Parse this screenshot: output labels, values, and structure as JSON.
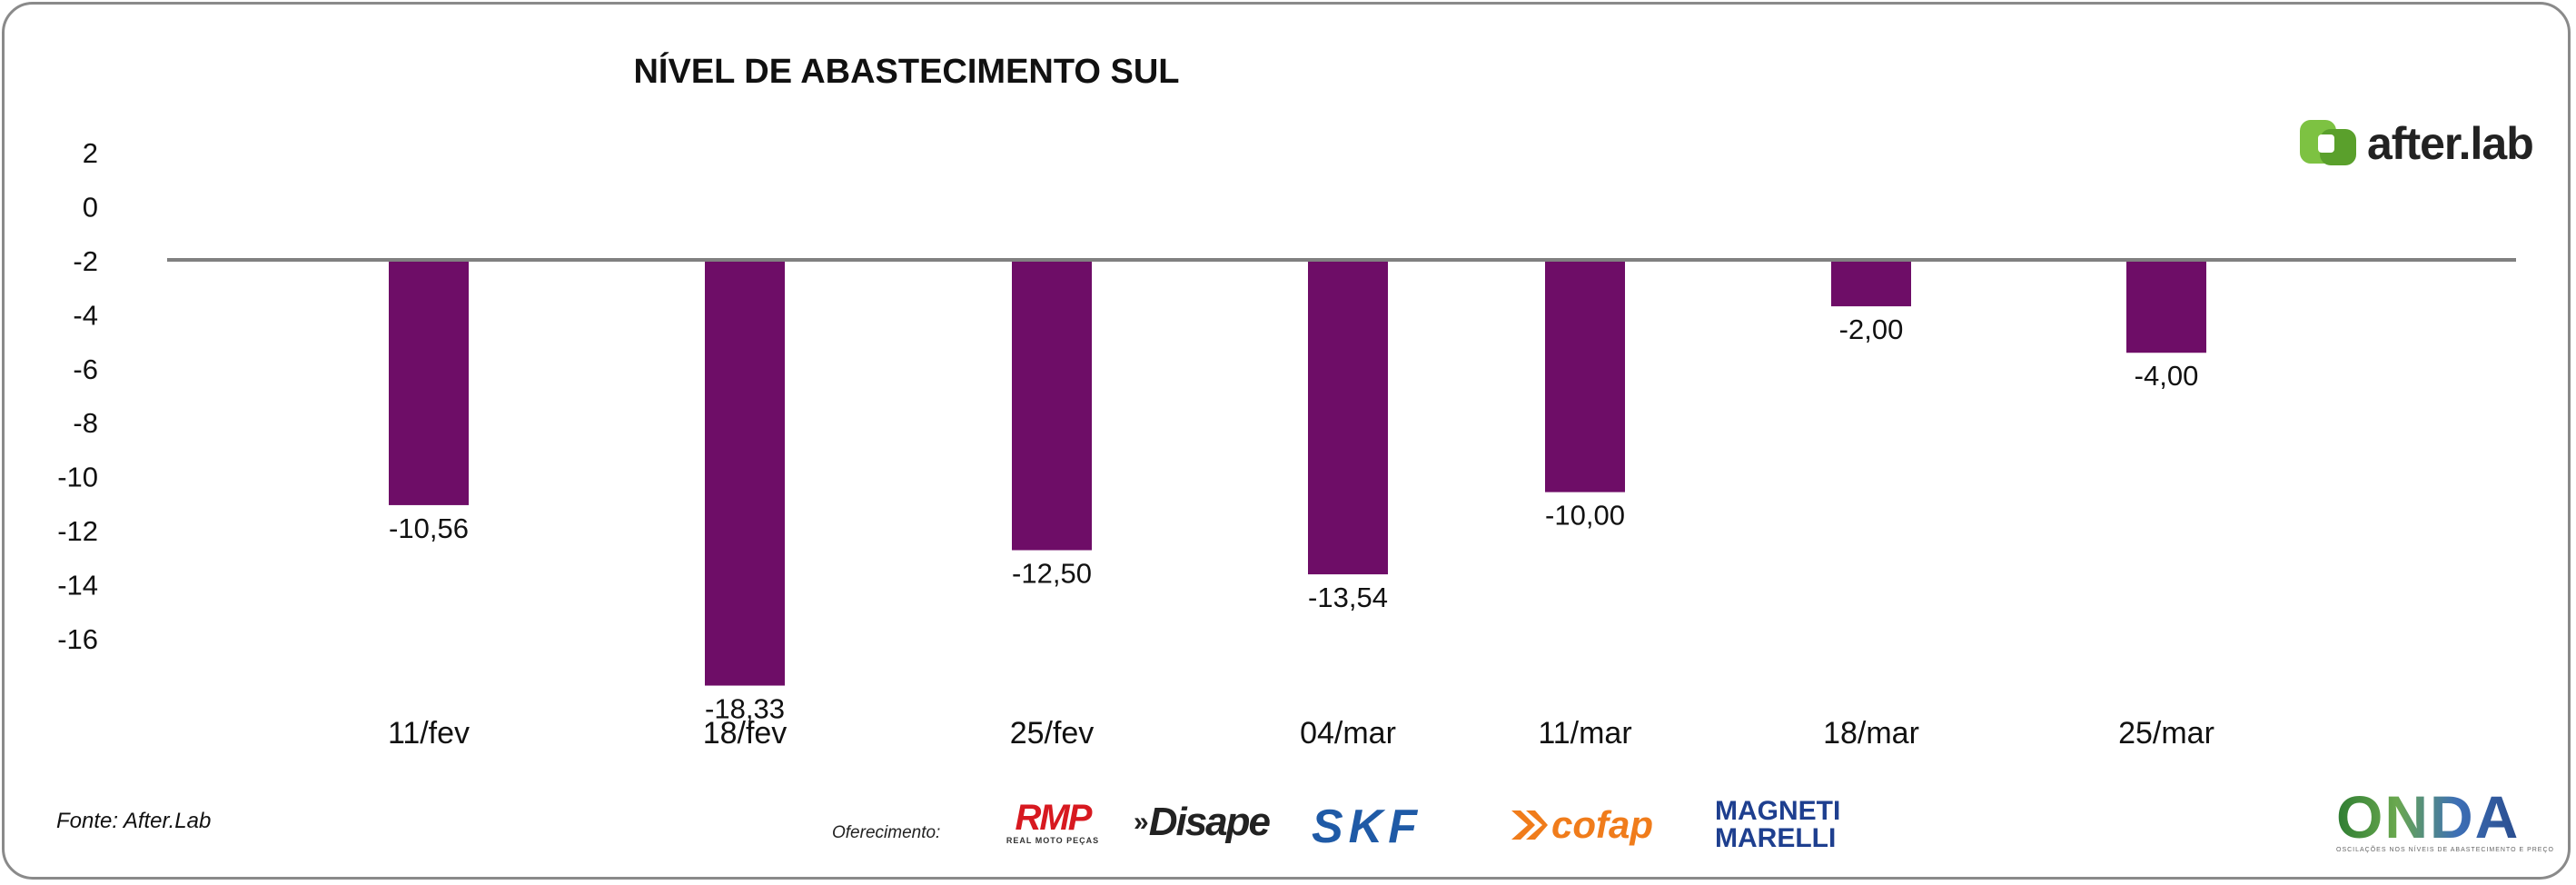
{
  "chart_data": {
    "type": "bar",
    "title": "NÍVEL DE ABASTECIMENTO SUL",
    "categories": [
      "11/fev",
      "18/fev",
      "25/fev",
      "04/mar",
      "11/mar",
      "18/mar",
      "25/mar"
    ],
    "values": [
      -10.56,
      -18.33,
      -12.5,
      -13.54,
      -10.0,
      -2.0,
      -4.0
    ],
    "data_labels": [
      "-10,56",
      "-18,33",
      "-12,50",
      "-13,54",
      "-10,00",
      "-2,00",
      "-4,00"
    ],
    "y_ticks": [
      "2",
      "0",
      "-2",
      "-4",
      "-6",
      "-8",
      "-10",
      "-12",
      "-14",
      "-16"
    ],
    "ylim": [
      -16,
      2
    ],
    "bar_color": "#6e0d67",
    "baseline_color": "#808080",
    "grid": false,
    "xlabel": "",
    "ylabel": ""
  },
  "footer": {
    "source": "Fonte: After.Lab",
    "sponsor_label": "Oferecimento:",
    "sponsors": [
      "RMP",
      "REAL MOTO PEÇAS",
      "Disape",
      "SKF",
      "cofap",
      "MAGNETI",
      "MARELLI"
    ]
  },
  "branding": {
    "afterlab": "after.lab",
    "onda": "ONDA",
    "onda_tagline": "OSCILAÇÕES NOS NÍVEIS DE ABASTECIMENTO E PREÇO",
    "afterlab_color": "#7dc242"
  }
}
